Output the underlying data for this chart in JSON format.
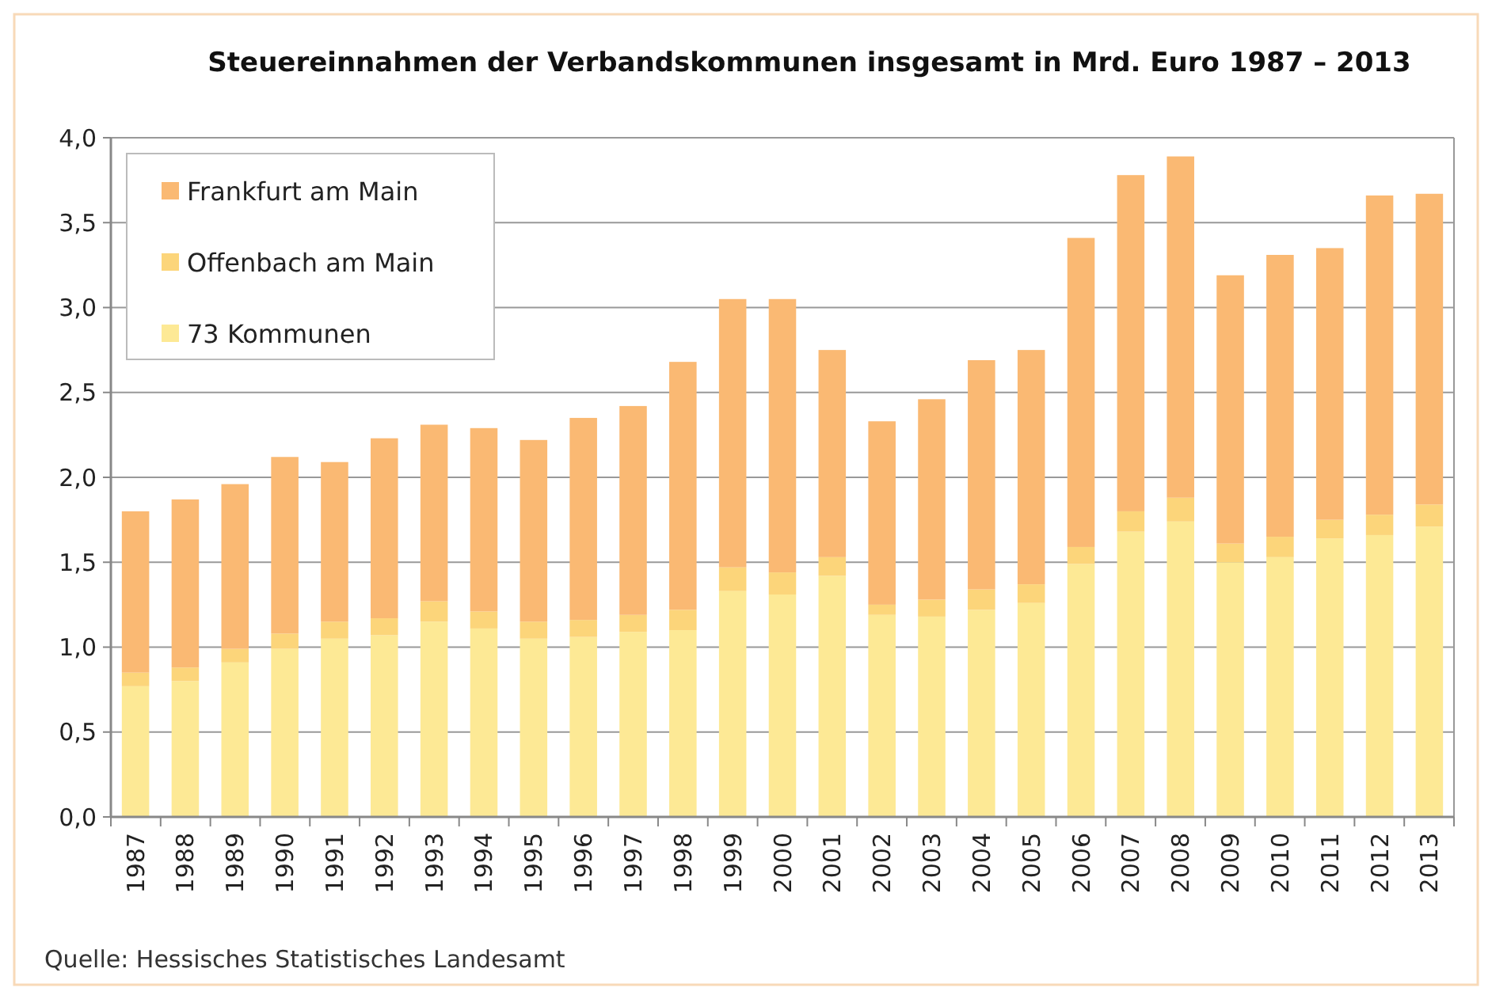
{
  "chart_data": {
    "type": "bar",
    "stacked": true,
    "title": "Steuereinnahmen der Verbandskommunen insgesamt in Mrd. Euro 1987 – 2013",
    "categories": [
      "1987",
      "1988",
      "1989",
      "1990",
      "1991",
      "1992",
      "1993",
      "1994",
      "1995",
      "1996",
      "1997",
      "1998",
      "1999",
      "2000",
      "2001",
      "2002",
      "2003",
      "2004",
      "2005",
      "2006",
      "2007",
      "2008",
      "2009",
      "2010",
      "2011",
      "2012",
      "2013"
    ],
    "series": [
      {
        "name": "73 Kommunen",
        "color": "#fde995",
        "values": [
          0.77,
          0.8,
          0.91,
          0.99,
          1.05,
          1.07,
          1.15,
          1.11,
          1.05,
          1.06,
          1.09,
          1.1,
          1.33,
          1.31,
          1.42,
          1.19,
          1.18,
          1.22,
          1.26,
          1.49,
          1.68,
          1.74,
          1.5,
          1.53,
          1.64,
          1.66,
          1.71
        ]
      },
      {
        "name": "Offenbach am Main",
        "color": "#fcd57a",
        "values": [
          0.08,
          0.08,
          0.08,
          0.09,
          0.1,
          0.1,
          0.12,
          0.1,
          0.1,
          0.1,
          0.1,
          0.12,
          0.14,
          0.13,
          0.11,
          0.06,
          0.1,
          0.12,
          0.11,
          0.1,
          0.12,
          0.14,
          0.11,
          0.12,
          0.11,
          0.12,
          0.13
        ]
      },
      {
        "name": "Frankfurt am Main",
        "color": "#fab973",
        "values": [
          0.95,
          0.99,
          0.97,
          1.04,
          0.94,
          1.06,
          1.04,
          1.08,
          1.07,
          1.19,
          1.23,
          1.46,
          1.58,
          1.61,
          1.22,
          1.08,
          1.18,
          1.35,
          1.38,
          1.82,
          1.98,
          2.01,
          1.58,
          1.66,
          1.6,
          1.88,
          1.83
        ]
      }
    ],
    "ylim": [
      0,
      4
    ],
    "yticks": [
      {
        "value": 0,
        "label": "0,0"
      },
      {
        "value": 0.5,
        "label": "0,5"
      },
      {
        "value": 1,
        "label": "1,0"
      },
      {
        "value": 1.5,
        "label": "1,5"
      },
      {
        "value": 2,
        "label": "2,0"
      },
      {
        "value": 2.5,
        "label": "2,5"
      },
      {
        "value": 3,
        "label": "3,0"
      },
      {
        "value": 3.5,
        "label": "3,5"
      },
      {
        "value": 4,
        "label": "4,0"
      }
    ],
    "grid": "y",
    "legend": "top left",
    "annotations": [
      "Quelle: Hessisches Statistisches Landesamt"
    ]
  }
}
